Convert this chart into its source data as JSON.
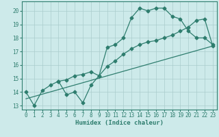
{
  "line1_x": [
    0,
    1,
    2,
    3,
    4,
    5,
    6,
    7,
    8,
    9,
    10,
    11,
    12,
    13,
    14,
    15,
    16,
    17,
    18,
    19,
    20,
    21,
    22,
    23
  ],
  "line1_y": [
    14.0,
    13.0,
    14.1,
    14.5,
    14.8,
    13.8,
    14.0,
    13.2,
    14.5,
    15.2,
    17.3,
    17.5,
    18.0,
    19.5,
    20.2,
    20.0,
    20.2,
    20.2,
    19.6,
    19.4,
    18.5,
    18.0,
    18.0,
    17.5
  ],
  "line2_x": [
    4,
    5,
    6,
    7,
    8,
    9,
    10,
    11,
    12,
    13,
    14,
    15,
    16,
    17,
    18,
    19,
    20,
    21,
    22,
    23
  ],
  "line2_y": [
    14.8,
    14.9,
    15.2,
    15.3,
    15.5,
    15.2,
    15.9,
    16.3,
    16.8,
    17.2,
    17.5,
    17.7,
    17.8,
    18.0,
    18.2,
    18.5,
    18.8,
    19.3,
    19.4,
    17.4
  ],
  "line3_x": [
    0,
    23
  ],
  "line3_y": [
    13.5,
    17.4
  ],
  "color": "#2e7d6e",
  "bg_color": "#cdeaea",
  "grid_color": "#aacccc",
  "xlim": [
    -0.5,
    23.5
  ],
  "ylim": [
    12.7,
    20.7
  ],
  "xlabel": "Humidex (Indice chaleur)",
  "xticks": [
    0,
    1,
    2,
    3,
    4,
    5,
    6,
    7,
    8,
    9,
    10,
    11,
    12,
    13,
    14,
    15,
    16,
    17,
    18,
    19,
    20,
    21,
    22,
    23
  ],
  "yticks": [
    13,
    14,
    15,
    16,
    17,
    18,
    19,
    20
  ],
  "xlabel_fontsize": 6.5,
  "tick_fontsize": 5.5,
  "marker_size": 2.5,
  "line_width": 0.9
}
